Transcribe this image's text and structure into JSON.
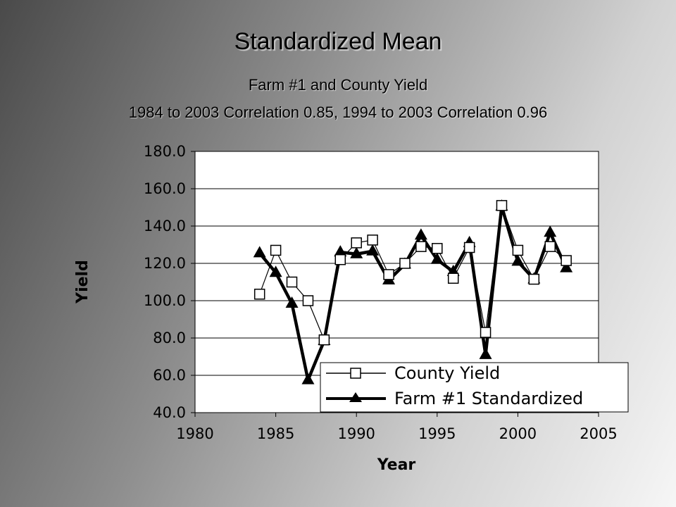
{
  "chart_data": {
    "type": "line",
    "title": "Standardized Mean",
    "subtitle_1": "Farm #1 and County Yield",
    "subtitle_2": "1984 to 2003 Correlation 0.85, 1994 to 2003 Correlation 0.96",
    "xlabel": "Year",
    "ylabel": "Yield",
    "xlim": [
      1980,
      2005
    ],
    "ylim": [
      40,
      180
    ],
    "xticks": [
      1980,
      1985,
      1990,
      1995,
      2000,
      2005
    ],
    "xtick_labels": [
      "1980",
      "1985",
      "1990",
      "1995",
      "2000",
      "2005"
    ],
    "yticks": [
      40,
      60,
      80,
      100,
      120,
      140,
      160,
      180
    ],
    "ytick_labels": [
      "40.0",
      "60.0",
      "80.0",
      "100.0",
      "120.0",
      "140.0",
      "160.0",
      "180.0"
    ],
    "grid": "horizontal",
    "legend_position": "bottom-right",
    "series": [
      {
        "name": "County Yield",
        "marker": "square",
        "color": "#000000",
        "x": [
          1984,
          1985,
          1986,
          1987,
          1988,
          1989,
          1990,
          1991,
          1992,
          1993,
          1994,
          1995,
          1996,
          1997,
          1998,
          1999,
          2000,
          2001,
          2002,
          2003
        ],
        "y": [
          103.5,
          127,
          110,
          100,
          79,
          122,
          131,
          132.5,
          114,
          120,
          129,
          128,
          112,
          128.5,
          83,
          151,
          127,
          111.5,
          129,
          121.5
        ]
      },
      {
        "name": "Farm #1 Standardized",
        "marker": "triangle",
        "color": "#000000",
        "x": [
          1984,
          1985,
          1986,
          1987,
          1988,
          1989,
          1990,
          1991,
          1992,
          1993,
          1994,
          1995,
          1996,
          1997,
          1998,
          1999,
          2000,
          2001,
          2002,
          2003
        ],
        "y": [
          125.5,
          115,
          98.5,
          57.5,
          78.5,
          126,
          125,
          126.5,
          111,
          119.5,
          135,
          122,
          115.5,
          131,
          71,
          150.5,
          121,
          111.5,
          136.5,
          117.5
        ]
      }
    ]
  }
}
